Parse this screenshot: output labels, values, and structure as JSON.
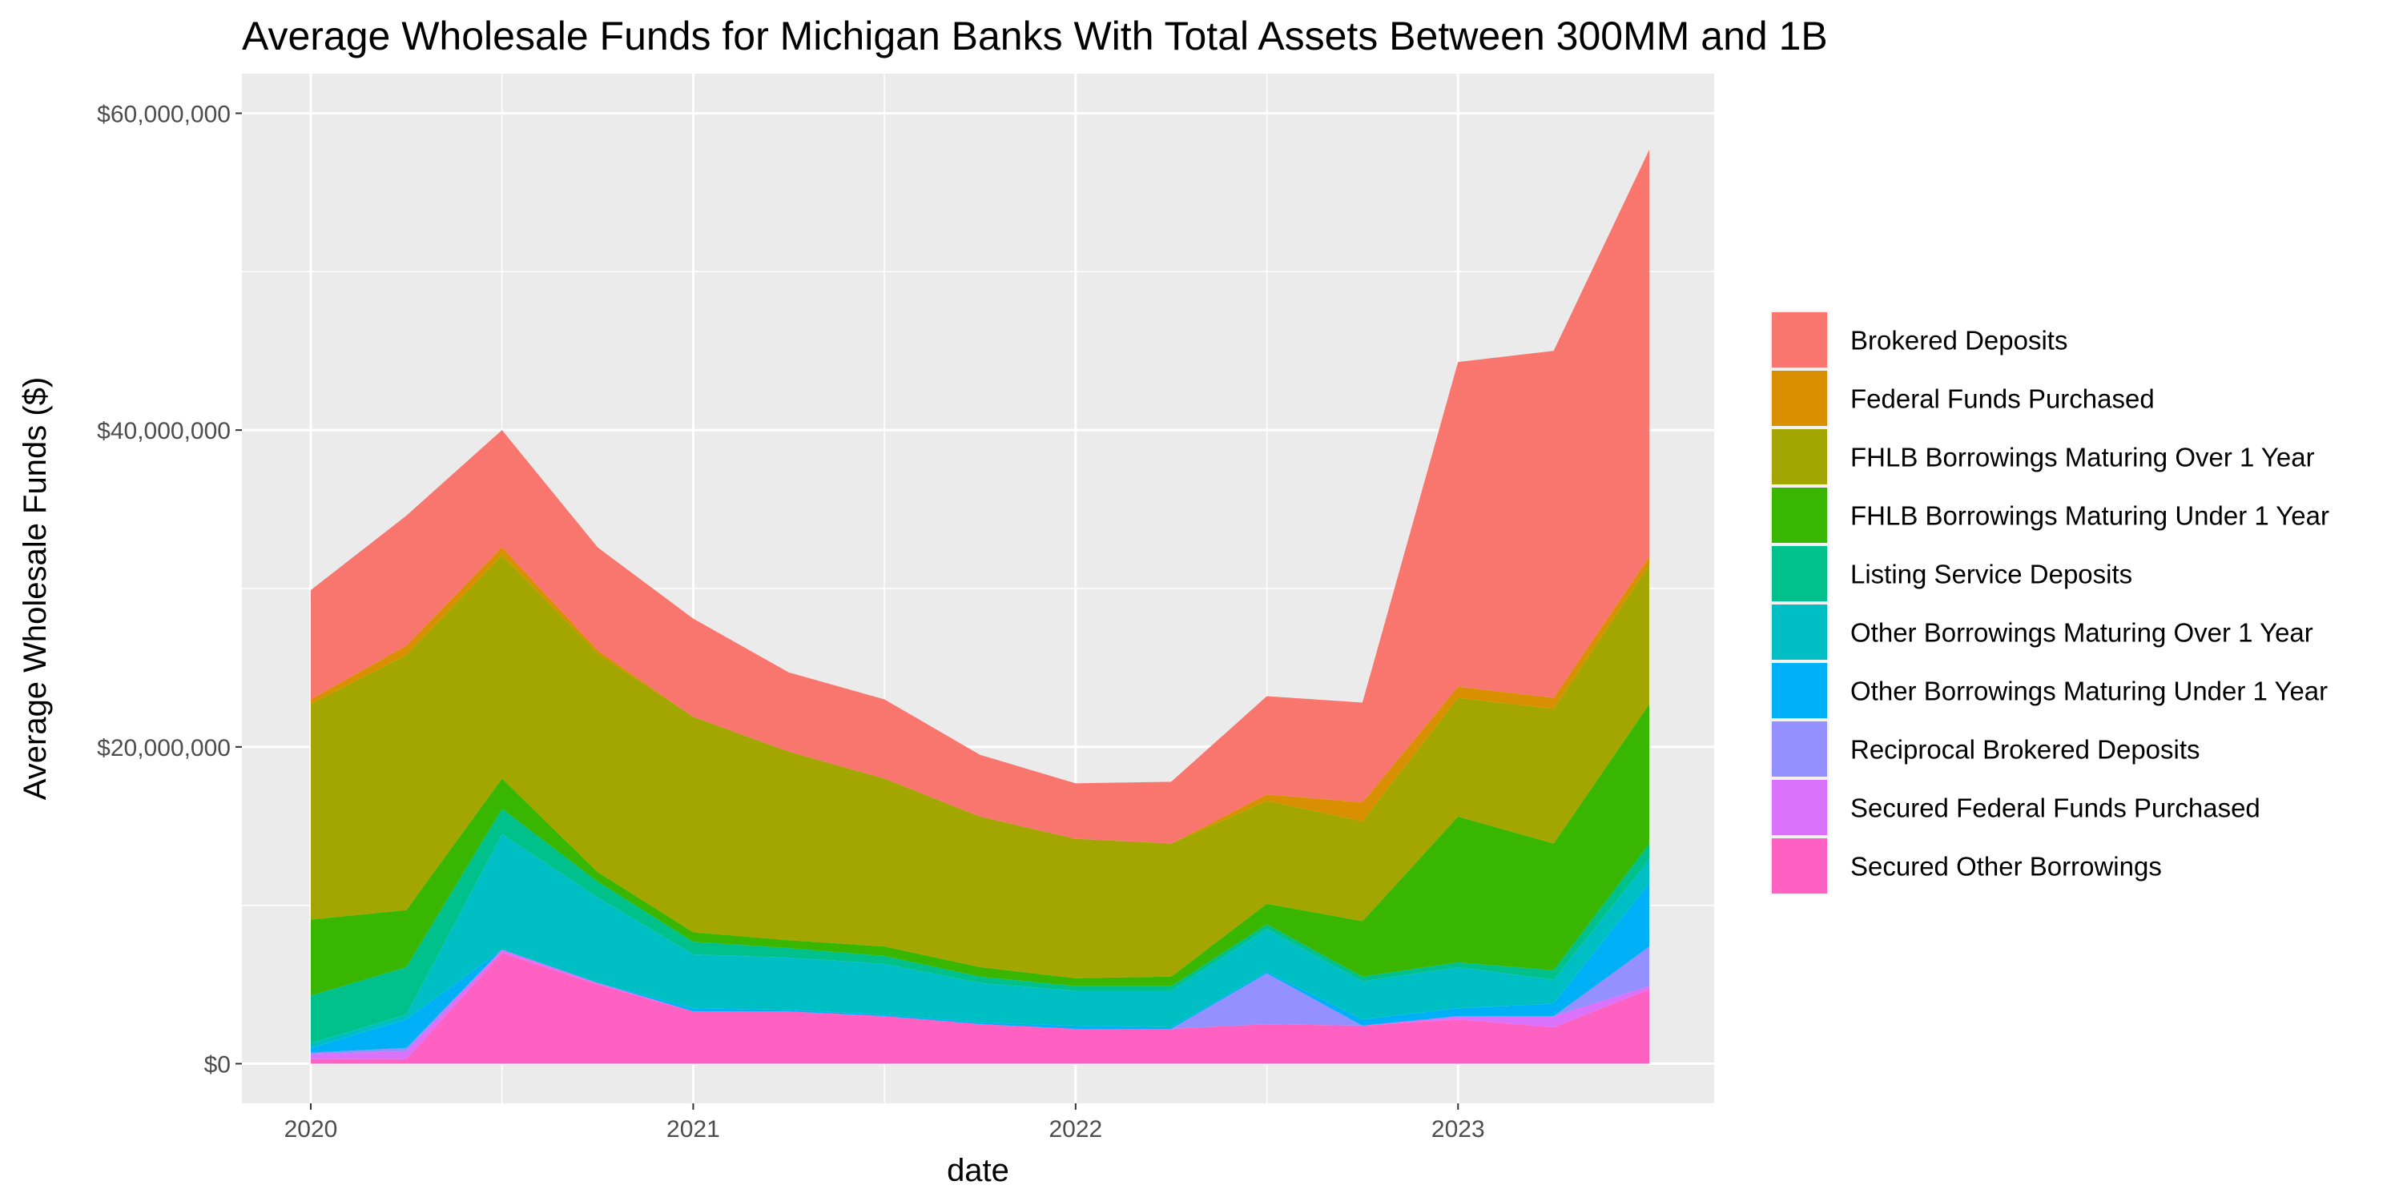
{
  "chart_data": {
    "type": "area",
    "stacked": true,
    "title": "Average Wholesale Funds for Michigan Banks With Total Assets Between 300MM and 1B",
    "xlabel": "date",
    "ylabel": "Average Wholesale Funds ($)",
    "x": [
      "2020-Q1",
      "2020-Q2",
      "2020-Q3",
      "2020-Q4",
      "2021-Q1",
      "2021-Q2",
      "2021-Q3",
      "2021-Q4",
      "2022-Q1",
      "2022-Q2",
      "2022-Q3",
      "2022-Q4",
      "2023-Q1",
      "2023-Q2",
      "2023-Q3"
    ],
    "x_ticks": [
      {
        "index": 0,
        "label": "2020"
      },
      {
        "index": 4,
        "label": "2021"
      },
      {
        "index": 8,
        "label": "2022"
      },
      {
        "index": 12,
        "label": "2023"
      }
    ],
    "ylim": [
      -2500000,
      62500000
    ],
    "y_ticks": [
      {
        "value": 0,
        "label": "$0"
      },
      {
        "value": 20000000,
        "label": "$20,000,000"
      },
      {
        "value": 40000000,
        "label": "$40,000,000"
      },
      {
        "value": 60000000,
        "label": "$60,000,000"
      }
    ],
    "grid": true,
    "legend_position": "right",
    "series": [
      {
        "name": "Secured Other Borrowings",
        "color": "#FF61C3",
        "values": [
          300000,
          300000,
          7000000,
          5000000,
          3300000,
          3300000,
          3000000,
          2500000,
          2200000,
          2200000,
          2500000,
          2400000,
          2800000,
          2300000,
          4700000
        ]
      },
      {
        "name": "Secured Federal Funds Purchased",
        "color": "#DB72FB",
        "values": [
          300000,
          500000,
          200000,
          100000,
          0,
          0,
          0,
          0,
          0,
          0,
          0,
          0,
          200000,
          700000,
          200000
        ]
      },
      {
        "name": "Reciprocal Brokered Deposits",
        "color": "#9590FF",
        "values": [
          100000,
          200000,
          0,
          0,
          0,
          0,
          0,
          0,
          0,
          0,
          3200000,
          0,
          0,
          0,
          2500000
        ]
      },
      {
        "name": "Other Borrowings Maturing Under 1 Year",
        "color": "#00B0F6",
        "values": [
          300000,
          1800000,
          0,
          0,
          200000,
          100000,
          100000,
          100000,
          200000,
          100000,
          100000,
          400000,
          500000,
          800000,
          4000000
        ]
      },
      {
        "name": "Other Borrowings Maturing Over 1 Year",
        "color": "#00BFC4",
        "values": [
          300000,
          300000,
          7300000,
          5400000,
          3400000,
          3300000,
          3200000,
          2500000,
          2200000,
          2300000,
          2700000,
          2400000,
          2600000,
          1500000,
          1500000
        ]
      },
      {
        "name": "Listing Service Deposits",
        "color": "#00C08B",
        "values": [
          3000000,
          3000000,
          1600000,
          1000000,
          800000,
          600000,
          500000,
          400000,
          300000,
          300000,
          300000,
          300000,
          300000,
          600000,
          1000000
        ]
      },
      {
        "name": "FHLB Borrowings Maturing Under 1 Year",
        "color": "#39B600",
        "values": [
          4800000,
          3600000,
          1900000,
          600000,
          600000,
          500000,
          600000,
          600000,
          500000,
          600000,
          1300000,
          3500000,
          9200000,
          8000000,
          8800000
        ]
      },
      {
        "name": "FHLB Borrowings Maturing Over 1 Year",
        "color": "#A3A500",
        "values": [
          13600000,
          16100000,
          14100000,
          13800000,
          13600000,
          11900000,
          10600000,
          9500000,
          8800000,
          8400000,
          6500000,
          6300000,
          7500000,
          8500000,
          8800000
        ]
      },
      {
        "name": "Federal Funds Purchased",
        "color": "#D89000",
        "values": [
          300000,
          600000,
          500000,
          200000,
          0,
          0,
          0,
          0,
          0,
          0,
          400000,
          1200000,
          700000,
          700000,
          500000
        ]
      },
      {
        "name": "Brokered Deposits",
        "color": "#F8766D",
        "values": [
          6900000,
          8200000,
          7400000,
          6500000,
          6200000,
          5000000,
          5000000,
          3900000,
          3500000,
          3900000,
          6200000,
          6300000,
          20500000,
          21900000,
          25700000
        ]
      }
    ],
    "legend_order": [
      "Brokered Deposits",
      "Federal Funds Purchased",
      "FHLB Borrowings Maturing Over 1 Year",
      "FHLB Borrowings Maturing Under 1 Year",
      "Listing Service Deposits",
      "Other Borrowings Maturing Over 1 Year",
      "Other Borrowings Maturing Under 1 Year",
      "Reciprocal Brokered Deposits",
      "Secured Federal Funds Purchased",
      "Secured Other Borrowings"
    ]
  }
}
